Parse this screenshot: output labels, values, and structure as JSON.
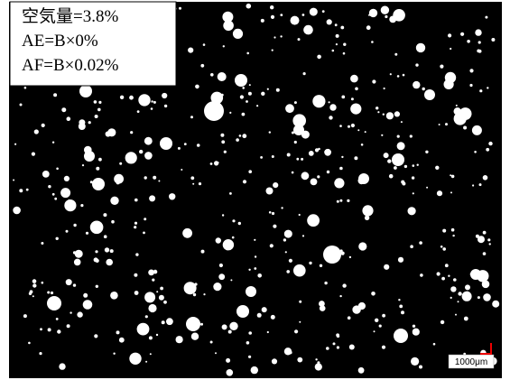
{
  "annotation": {
    "lines": [
      "空気量=3.8%",
      "AE=B×0%",
      "AF=B×0.02%"
    ]
  },
  "scale_bar": {
    "label": "1000μm"
  }
}
